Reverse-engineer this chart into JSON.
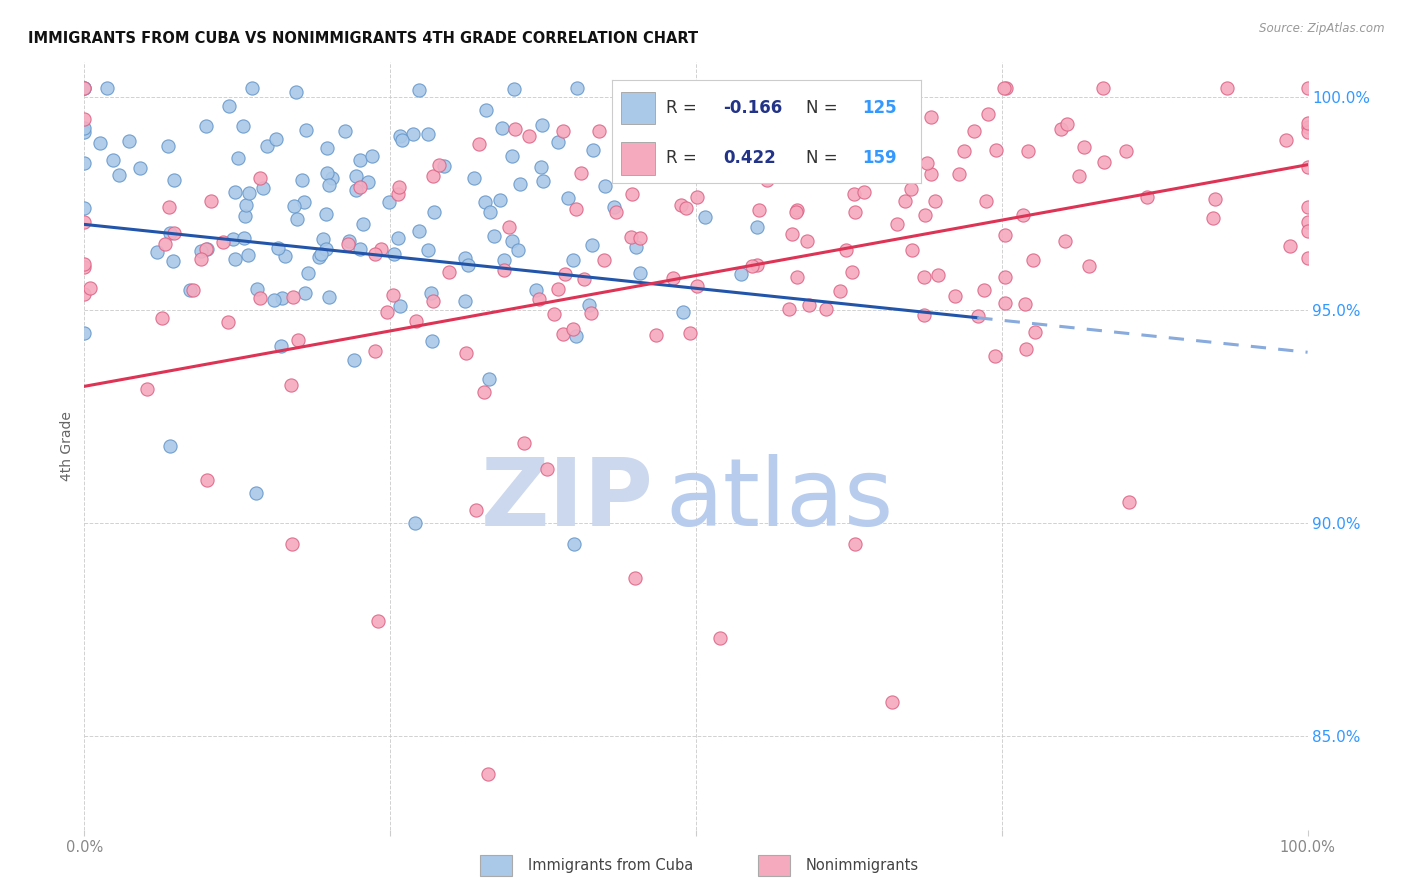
{
  "title": "IMMIGRANTS FROM CUBA VS NONIMMIGRANTS 4TH GRADE CORRELATION CHART",
  "source": "Source: ZipAtlas.com",
  "ylabel": "4th Grade",
  "xlim": [
    0.0,
    1.0
  ],
  "ylim": [
    0.828,
    1.008
  ],
  "yticks": [
    0.85,
    0.9,
    0.95,
    1.0
  ],
  "ytick_labels": [
    "85.0%",
    "90.0%",
    "95.0%",
    "100.0%"
  ],
  "blue_R": -0.166,
  "blue_N": 125,
  "pink_R": 0.422,
  "pink_N": 159,
  "blue_scatter_color": "#aac8e8",
  "pink_scatter_color": "#f5aabe",
  "blue_edge_color": "#6699cc",
  "pink_edge_color": "#dd6688",
  "blue_line_color": "#2255aa",
  "pink_line_color": "#dd3355",
  "blue_dashed_color": "#88aadd",
  "legend_R_dark": "#223388",
  "legend_N_blue": "#3399ff",
  "grid_color": "#cccccc",
  "title_color": "#111111",
  "ylabel_color": "#666666",
  "tick_color": "#888888",
  "watermark_zip_color": "#ccd8ee",
  "watermark_atlas_color": "#b8ccee",
  "background_color": "#ffffff",
  "seed": 99,
  "blue_line_start_y": 0.97,
  "blue_line_end_y": 0.94,
  "pink_line_start_y": 0.932,
  "pink_line_end_y": 0.984
}
